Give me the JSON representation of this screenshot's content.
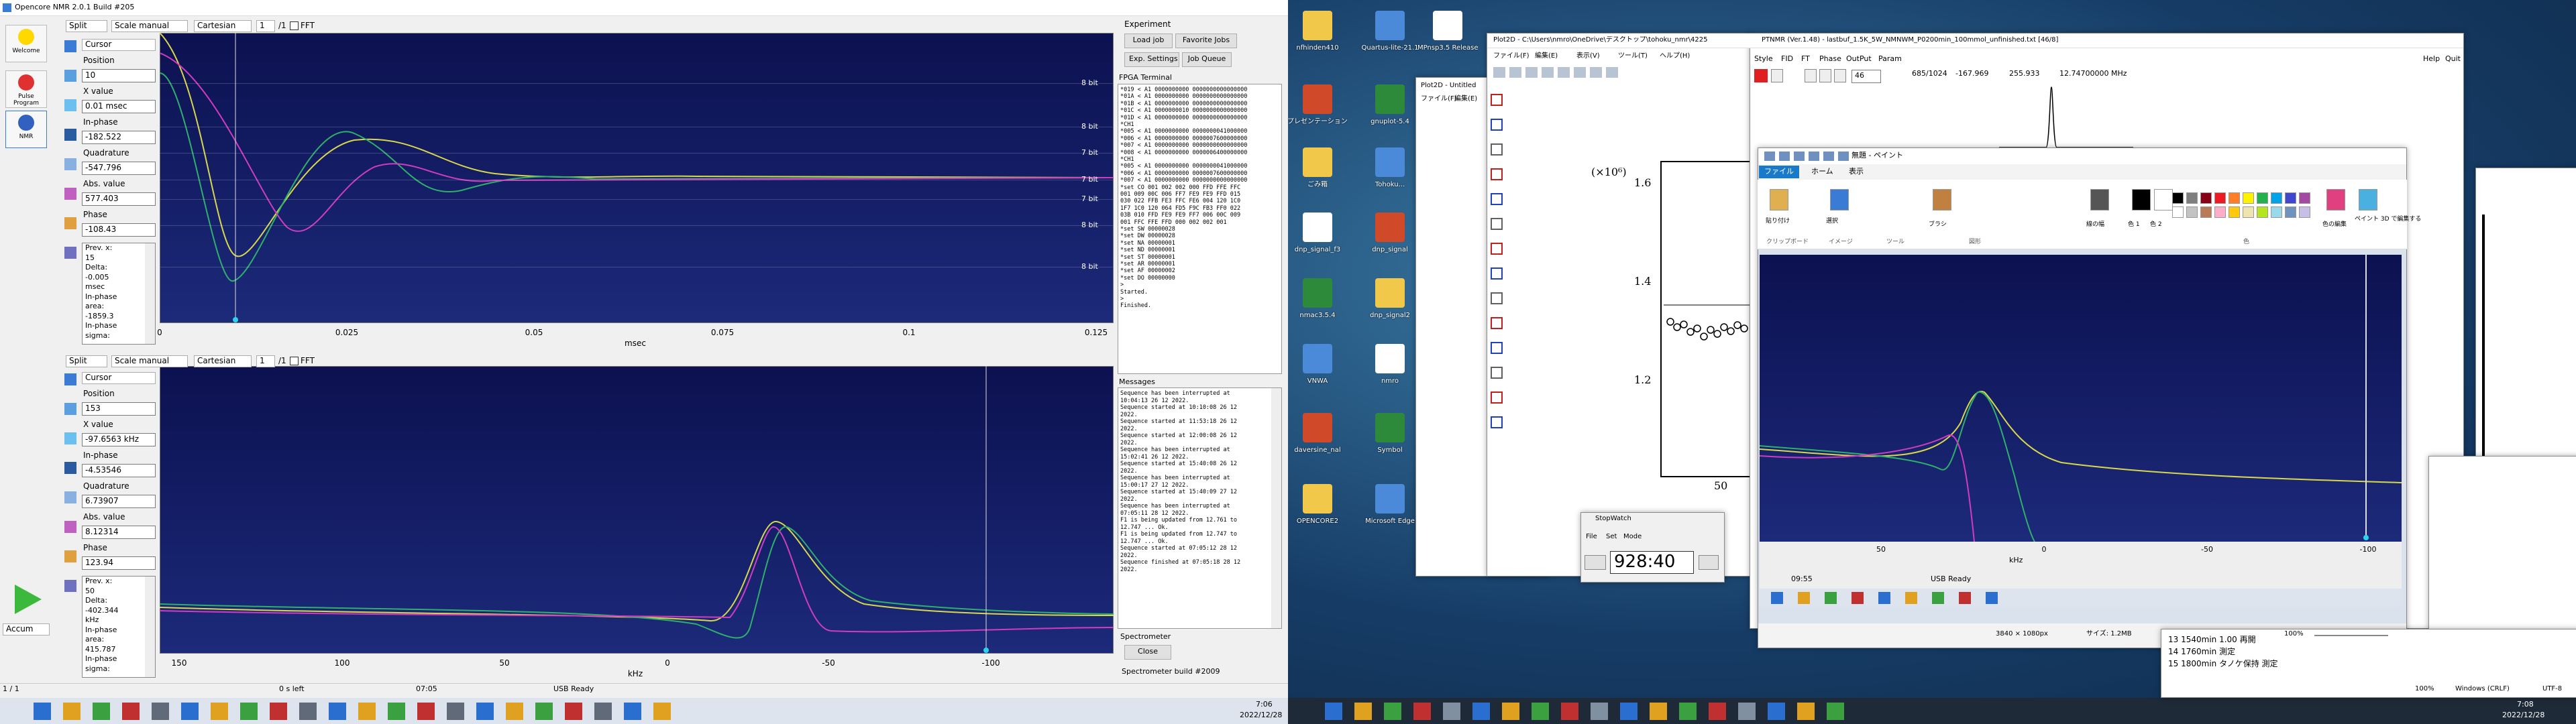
{
  "left_screen": {
    "window_title": "Opencore NMR 2.0.1 Build #205",
    "side_buttons": [
      "Welcome",
      "Pulse Program",
      "NMR"
    ],
    "accum": "Accum",
    "plots": [
      {
        "toolbar": {
          "mode": "Split",
          "scale": "Scale manual",
          "coordinates": "Cartesian",
          "index": "1",
          "count": "/1",
          "fft": "FFT"
        },
        "cursor": {
          "mode": "Cursor",
          "fields": [
            {
              "label": "Position",
              "value": "10"
            },
            {
              "label": "X value",
              "value": "0.01 msec"
            },
            {
              "label": "In-phase",
              "value": "-182.522"
            },
            {
              "label": "Quadrature",
              "value": "-547.796"
            },
            {
              "label": "Abs. value",
              "value": "577.403"
            },
            {
              "label": "Phase",
              "value": "-108.43"
            }
          ],
          "info": [
            "Prev. x:",
            "15",
            "Delta:",
            "-0.005",
            "msec",
            "In-phase",
            "area:",
            "-1859.3",
            "In-phase",
            "sigma:"
          ]
        },
        "bit_labels": [
          "8 bit",
          "8 bit",
          "7 bit",
          "7 bit",
          "7 bit",
          "8 bit",
          "8 bit"
        ],
        "x_ticks": [
          "0",
          "0.025",
          "0.05",
          "0.075",
          "0.1",
          "0.125"
        ],
        "x_label": "msec"
      },
      {
        "toolbar": {
          "mode": "Split",
          "scale": "Scale manual",
          "coordinates": "Cartesian",
          "index": "1",
          "count": "/1",
          "fft": "FFT"
        },
        "cursor": {
          "mode": "Cursor",
          "fields": [
            {
              "label": "Position",
              "value": "153"
            },
            {
              "label": "X value",
              "value": "-97.6563 kHz"
            },
            {
              "label": "In-phase",
              "value": "-4.53546"
            },
            {
              "label": "Quadrature",
              "value": "6.73907"
            },
            {
              "label": "Abs. value",
              "value": "8.12314"
            },
            {
              "label": "Phase",
              "value": "123.94"
            }
          ],
          "info": [
            "Prev. x:",
            "50",
            "Delta:",
            "-402.344",
            "kHz",
            "In-phase",
            "area:",
            "415.787",
            "In-phase",
            "sigma:"
          ]
        },
        "x_ticks": [
          "150",
          "100",
          "50",
          "0",
          "-50",
          "-100"
        ],
        "x_label": "kHz"
      }
    ],
    "panel": {
      "experiment": "Experiment",
      "buttons": [
        "Load job",
        "Favorite Jobs",
        "Exp. Settings",
        "Job Queue"
      ],
      "terminal_title": "FPGA Terminal",
      "terminal": [
        "*019 < A1 0000000000 0000000000000000",
        "*01A < A1 0000000000 0000000000000000",
        "*01B < A1 0000000000 0000000000000000",
        "*01C < A1 0000000010 0000000000000000",
        "*01D < A1 0000000000 0000000000000000",
        "*CH1",
        "*005 < A1 0000000000 0000000041000000",
        "*006 < A1 0000000000 0000007600000000",
        "*007 < A1 0000000000 0000000000000000",
        "*008 < A1 0000000000 0000006400000000",
        "*CH1",
        "*005 < A1 0000000000 0000000041000000",
        "*006 < A1 0000000000 0000007600000000",
        "*007 < A1 0000000000 0000000000000000",
        "*set CO 001 002 002 000 FFD FFE FFC",
        "001 009 00C 006 FF7 FE9 FE9 FFD 015",
        "030 022 FFB FE3 FFC FE6 004 120 1C0",
        "1F7 1C0 120 064 FD5 F9C FB3 FF0 022",
        "03B 010 FFD FE9 FE9 FF7 006 00C 009",
        "001 FFC FFE FFD 000 002 002 001",
        "*set SW 00000028",
        "*set DW 00000028",
        "*set NA 00000001",
        "*set ND 00000001",
        "*set ST 00000001",
        "*set AR 00000001",
        "*set AF 00000002",
        "*set DO 00000000",
        ">",
        "Started.",
        ">",
        "Finished."
      ],
      "messages_title": "Messages",
      "messages": [
        "Sequence has been interrupted at",
        "10:04:13 26 12 2022.",
        "Sequence started at 10:10:08 26 12",
        "2022.",
        "Sequence started at 11:53:18 26 12",
        "2022.",
        "Sequence started at 12:00:08 26 12",
        "2022.",
        "Sequence has been interrupted at",
        "15:02:41 26 12 2022.",
        "Sequence started at 15:40:08 26 12",
        "2022.",
        "Sequence has been interrupted at",
        "15:00:17 27 12 2022.",
        "Sequence started at 15:40:09 27 12",
        "2022.",
        "Sequence has been interrupted at",
        "07:05:11 28 12 2022.",
        "F1 is being updated from 12.761 to",
        "12.747 ... Ok.",
        "F1 is being updated from 12.747 to",
        "12.747 ... Ok.",
        "Sequence started at 07:05:12 28 12",
        "2022.",
        "Sequence finished at 07:05:18 28 12",
        "2022."
      ],
      "spectrometer": "Spectrometer",
      "close": "Close",
      "build": "Spectrometer build #2009"
    },
    "status": [
      "1 / 1",
      "0 s left",
      "07:05",
      "USB Ready"
    ],
    "clock": {
      "time": "7:06",
      "date": "2022/12/28"
    }
  },
  "right_screen": {
    "desktop_icons": [
      "nfhinden410",
      "Quartus-lite-21.1",
      "MPnsp3.5 Release",
      "プレゼンテーション1",
      "gnuplot-5.4",
      "ごみ箱",
      "Tohoku...",
      "dnp_signal_f3",
      "dnp_signal",
      "nmac3.5.4",
      "dnp_signal2",
      "VNWA",
      "nmro",
      "daversine_nal",
      "Symbol",
      "OPENCORE2",
      "Microsoft Edge"
    ],
    "back_window": {
      "title": "Plot2D - Untitled",
      "menu": [
        "ファイル(F)",
        "編集(E)"
      ]
    },
    "graph_window": {
      "title": "Plot2D - C:\\Users\\nmro\\OneDrive\\デスクトップ\\tohoku_nmr\\4225",
      "menu": [
        "ファイル(F)",
        "編集(E)",
        "表示(V)",
        "ツール(T)",
        "ヘルプ(H)"
      ],
      "scale": "(×10⁶)",
      "y_ticks": [
        "1.6",
        "1.4",
        "1.2"
      ],
      "x_ticks": [
        "50"
      ]
    },
    "stopwatch": {
      "title": "StopWatch",
      "menu": [
        "File",
        "Set",
        "Mode"
      ],
      "display": "928:40"
    },
    "ptnmr": {
      "title": "PTNMR (Ver.1.48) - lastbuf_1.5K_5W_NMNWM_P0200min_100mmol_unfinished.txt [46/8]",
      "menu": [
        "Style",
        "FID",
        "FT",
        "Phase",
        "OutPut",
        "Param"
      ],
      "menu_right": [
        "Help",
        "Quit"
      ],
      "fields": [
        "46",
        "685/1024",
        "-167.969",
        "255.933",
        "12.74700000 MHz"
      ]
    },
    "paint": {
      "title": "無題 - ペイント",
      "tabs": [
        "ファイル",
        "ホーム",
        "表示"
      ],
      "buttons": [
        "貼り付け",
        "選択",
        "ブラシ",
        "線の幅",
        "色 1",
        "色 2",
        "色の編集",
        "ペイント 3D で編集する"
      ],
      "groups": [
        "クリップボード",
        "イメージ",
        "ツール",
        "図形",
        "色"
      ],
      "inner": {
        "x_ticks": [
          "50",
          "0",
          "-50",
          "-100"
        ],
        "x_label": "kHz",
        "time": "09:55",
        "status": "USB Ready"
      },
      "status": [
        "3840 × 1080px",
        "サイズ: 1.2MB",
        "100%"
      ]
    },
    "notepad": {
      "lines": [
        "13 1540min 1.00 再開",
        "14 1760min 測定",
        "15 1800min タノケ保持 測定"
      ],
      "status": [
        "100%",
        "Windows (CRLF)",
        "UTF-8"
      ]
    },
    "clock": {
      "time": "7:08",
      "date": "2022/12/28"
    }
  }
}
